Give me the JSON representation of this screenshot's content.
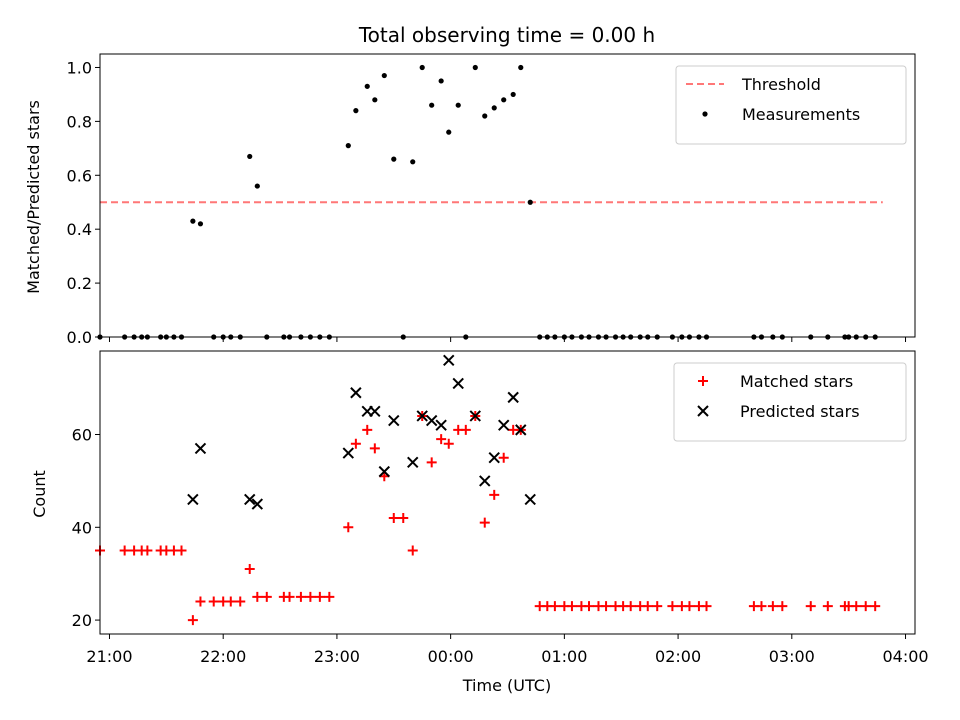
{
  "chart_data": [
    {
      "type": "scatter",
      "title": "Total observing time = 0.00 h",
      "xlabel": "",
      "ylabel": "Matched/Predicted stars",
      "ylim": [
        0,
        1.05
      ],
      "yticks": [
        "0.0",
        "0.2",
        "0.4",
        "0.6",
        "0.8",
        "1.0"
      ],
      "xlim": [
        "20:55",
        "04:05"
      ],
      "xticks": [
        "21:00",
        "22:00",
        "23:00",
        "00:00",
        "01:00",
        "02:00",
        "03:00",
        "04:00"
      ],
      "legend_position": "top-right",
      "threshold": {
        "name": "Threshold",
        "value": 0.5,
        "x_start": "20:55",
        "x_end": "03:48",
        "color": "#ff7777"
      },
      "series": [
        {
          "name": "Measurements",
          "color": "#000000",
          "marker": "dot",
          "points": [
            [
              "20:55",
              0
            ],
            [
              "21:08",
              0
            ],
            [
              "21:13",
              0
            ],
            [
              "21:17",
              0
            ],
            [
              "21:20",
              0
            ],
            [
              "21:27",
              0
            ],
            [
              "21:30",
              0
            ],
            [
              "21:34",
              0
            ],
            [
              "21:38",
              0
            ],
            [
              "21:44",
              0.43
            ],
            [
              "21:48",
              0.42
            ],
            [
              "21:55",
              0
            ],
            [
              "22:00",
              0
            ],
            [
              "22:04",
              0
            ],
            [
              "22:09",
              0
            ],
            [
              "22:14",
              0.67
            ],
            [
              "22:18",
              0.56
            ],
            [
              "22:23",
              0
            ],
            [
              "22:32",
              0
            ],
            [
              "22:35",
              0
            ],
            [
              "22:41",
              0
            ],
            [
              "22:46",
              0
            ],
            [
              "22:51",
              0
            ],
            [
              "22:56",
              0
            ],
            [
              "23:06",
              0.71
            ],
            [
              "23:10",
              0.84
            ],
            [
              "23:16",
              0.93
            ],
            [
              "23:20",
              0.88
            ],
            [
              "23:25",
              0.97
            ],
            [
              "23:30",
              0.66
            ],
            [
              "23:35",
              0
            ],
            [
              "23:40",
              0.65
            ],
            [
              "23:45",
              1.0
            ],
            [
              "23:50",
              0.86
            ],
            [
              "23:55",
              0.95
            ],
            [
              "23:59",
              0.76
            ],
            [
              "00:04",
              0.86
            ],
            [
              "00:08",
              0
            ],
            [
              "00:13",
              1.0
            ],
            [
              "00:18",
              0.82
            ],
            [
              "00:23",
              0.85
            ],
            [
              "00:28",
              0.88
            ],
            [
              "00:33",
              0.9
            ],
            [
              "00:37",
              1.0
            ],
            [
              "00:42",
              0.5
            ],
            [
              "00:47",
              0
            ],
            [
              "00:51",
              0
            ],
            [
              "00:55",
              0
            ],
            [
              "01:00",
              0
            ],
            [
              "01:04",
              0
            ],
            [
              "01:09",
              0
            ],
            [
              "01:13",
              0
            ],
            [
              "01:18",
              0
            ],
            [
              "01:22",
              0
            ],
            [
              "01:27",
              0
            ],
            [
              "01:31",
              0
            ],
            [
              "01:35",
              0
            ],
            [
              "01:40",
              0
            ],
            [
              "01:44",
              0
            ],
            [
              "01:49",
              0
            ],
            [
              "01:57",
              0
            ],
            [
              "02:02",
              0
            ],
            [
              "02:06",
              0
            ],
            [
              "02:11",
              0
            ],
            [
              "02:15",
              0
            ],
            [
              "02:40",
              0
            ],
            [
              "02:44",
              0
            ],
            [
              "02:50",
              0
            ],
            [
              "02:55",
              0
            ],
            [
              "03:10",
              0
            ],
            [
              "03:19",
              0
            ],
            [
              "03:28",
              0
            ],
            [
              "03:30",
              0
            ],
            [
              "03:34",
              0
            ],
            [
              "03:39",
              0
            ],
            [
              "03:44",
              0
            ]
          ]
        }
      ]
    },
    {
      "type": "scatter",
      "title": "",
      "xlabel": "Time (UTC)",
      "ylabel": "Count",
      "ylim": [
        17,
        78
      ],
      "yticks": [
        "20",
        "40",
        "60"
      ],
      "xlim": [
        "20:55",
        "04:05"
      ],
      "xticks": [
        "21:00",
        "22:00",
        "23:00",
        "00:00",
        "01:00",
        "02:00",
        "03:00",
        "04:00"
      ],
      "legend_position": "top-right",
      "series": [
        {
          "name": "Matched stars",
          "color": "#ff0000",
          "marker": "plus",
          "points": [
            [
              "20:55",
              35
            ],
            [
              "21:08",
              35
            ],
            [
              "21:13",
              35
            ],
            [
              "21:17",
              35
            ],
            [
              "21:20",
              35
            ],
            [
              "21:27",
              35
            ],
            [
              "21:30",
              35
            ],
            [
              "21:34",
              35
            ],
            [
              "21:38",
              35
            ],
            [
              "21:44",
              20
            ],
            [
              "21:48",
              24
            ],
            [
              "21:55",
              24
            ],
            [
              "22:00",
              24
            ],
            [
              "22:04",
              24
            ],
            [
              "22:09",
              24
            ],
            [
              "22:14",
              31
            ],
            [
              "22:18",
              25
            ],
            [
              "22:23",
              25
            ],
            [
              "22:32",
              25
            ],
            [
              "22:35",
              25
            ],
            [
              "22:41",
              25
            ],
            [
              "22:46",
              25
            ],
            [
              "22:51",
              25
            ],
            [
              "22:56",
              25
            ],
            [
              "23:06",
              40
            ],
            [
              "23:10",
              58
            ],
            [
              "23:16",
              61
            ],
            [
              "23:20",
              57
            ],
            [
              "23:25",
              51
            ],
            [
              "23:30",
              42
            ],
            [
              "23:35",
              42
            ],
            [
              "23:40",
              35
            ],
            [
              "23:45",
              64
            ],
            [
              "23:50",
              54
            ],
            [
              "23:55",
              59
            ],
            [
              "23:59",
              58
            ],
            [
              "00:04",
              61
            ],
            [
              "00:08",
              61
            ],
            [
              "00:13",
              64
            ],
            [
              "00:18",
              41
            ],
            [
              "00:23",
              47
            ],
            [
              "00:28",
              55
            ],
            [
              "00:33",
              61
            ],
            [
              "00:37",
              61
            ],
            [
              "00:47",
              23
            ],
            [
              "00:51",
              23
            ],
            [
              "00:55",
              23
            ],
            [
              "01:00",
              23
            ],
            [
              "01:04",
              23
            ],
            [
              "01:09",
              23
            ],
            [
              "01:13",
              23
            ],
            [
              "01:18",
              23
            ],
            [
              "01:22",
              23
            ],
            [
              "01:27",
              23
            ],
            [
              "01:31",
              23
            ],
            [
              "01:35",
              23
            ],
            [
              "01:40",
              23
            ],
            [
              "01:44",
              23
            ],
            [
              "01:49",
              23
            ],
            [
              "01:57",
              23
            ],
            [
              "02:02",
              23
            ],
            [
              "02:06",
              23
            ],
            [
              "02:11",
              23
            ],
            [
              "02:15",
              23
            ],
            [
              "02:40",
              23
            ],
            [
              "02:44",
              23
            ],
            [
              "02:50",
              23
            ],
            [
              "02:55",
              23
            ],
            [
              "03:10",
              23
            ],
            [
              "03:19",
              23
            ],
            [
              "03:28",
              23
            ],
            [
              "03:30",
              23
            ],
            [
              "03:34",
              23
            ],
            [
              "03:39",
              23
            ],
            [
              "03:44",
              23
            ]
          ]
        },
        {
          "name": "Predicted stars",
          "color": "#000000",
          "marker": "x",
          "points": [
            [
              "21:44",
              46
            ],
            [
              "21:48",
              57
            ],
            [
              "22:14",
              46
            ],
            [
              "22:18",
              45
            ],
            [
              "23:06",
              56
            ],
            [
              "23:10",
              69
            ],
            [
              "23:16",
              65
            ],
            [
              "23:20",
              65
            ],
            [
              "23:25",
              52
            ],
            [
              "23:30",
              63
            ],
            [
              "23:40",
              54
            ],
            [
              "23:45",
              64
            ],
            [
              "23:50",
              63
            ],
            [
              "23:55",
              62
            ],
            [
              "23:59",
              76
            ],
            [
              "00:04",
              71
            ],
            [
              "00:13",
              64
            ],
            [
              "00:18",
              50
            ],
            [
              "00:23",
              55
            ],
            [
              "00:28",
              62
            ],
            [
              "00:33",
              68
            ],
            [
              "00:37",
              61
            ],
            [
              "00:42",
              46
            ]
          ]
        }
      ]
    }
  ]
}
